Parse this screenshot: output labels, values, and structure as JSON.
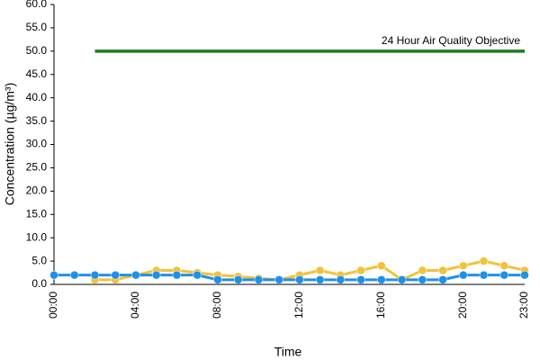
{
  "chart_data": {
    "type": "line",
    "x_label": "Time",
    "y_label": "Concentration (µg/m³)",
    "categories": [
      "00:00",
      null,
      null,
      null,
      "04:00",
      null,
      null,
      null,
      "08:00",
      null,
      null,
      null,
      "12:00",
      null,
      null,
      null,
      "16:00",
      null,
      null,
      null,
      "20:00",
      null,
      null,
      "23:00"
    ],
    "series": [
      {
        "name": "24 Hour Air Quality Objective",
        "color": "#1e7a1e",
        "markers": false,
        "values": [
          null,
          null,
          50,
          50,
          50,
          50,
          50,
          50,
          50,
          50,
          50,
          50,
          50,
          50,
          50,
          50,
          50,
          50,
          50,
          50,
          50,
          50,
          50,
          50
        ]
      },
      {
        "color": "#f2c23a",
        "markers": true,
        "values": [
          null,
          null,
          1.0,
          1.0,
          2.0,
          3.0,
          3.0,
          2.5,
          2.0,
          1.7,
          1.3,
          1.0,
          2.0,
          3.0,
          2.0,
          3.0,
          4.0,
          1.0,
          3.0,
          3.0,
          4.0,
          5.0,
          4.0,
          3.0
        ]
      },
      {
        "color": "#1e90e8",
        "markers": true,
        "values": [
          2.0,
          2.0,
          2.0,
          2.0,
          2.0,
          2.0,
          2.0,
          2.0,
          1.0,
          1.0,
          1.0,
          1.0,
          1.0,
          1.0,
          1.0,
          1.0,
          1.0,
          1.0,
          1.0,
          1.0,
          2.0,
          2.0,
          2.0,
          2.0
        ]
      }
    ],
    "ylim": [
      0,
      60
    ],
    "yticks": [
      {
        "value": 0,
        "label": "0.0"
      },
      {
        "value": 5,
        "label": "5.0"
      },
      {
        "value": 10,
        "label": "10.0"
      },
      {
        "value": 15,
        "label": "15.0"
      },
      {
        "value": 20,
        "label": "20.0"
      },
      {
        "value": 25,
        "label": "25.0"
      },
      {
        "value": 30,
        "label": "30.0"
      },
      {
        "value": 35,
        "label": "35.0"
      },
      {
        "value": 40,
        "label": "40.0"
      },
      {
        "value": 45,
        "label": "45.0"
      },
      {
        "value": 50,
        "label": "50.0"
      },
      {
        "value": 55,
        "label": "55.0"
      },
      {
        "value": 60,
        "label": "60.0"
      }
    ],
    "grid": false
  }
}
